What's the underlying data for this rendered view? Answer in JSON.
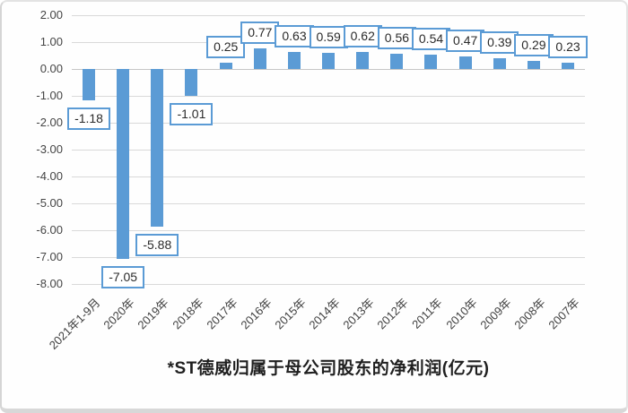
{
  "chart_data": {
    "type": "bar",
    "title": "*ST德威归属于母公司股东的净利润(亿元)",
    "xlabel": "",
    "ylabel": "",
    "categories": [
      "2021年1-9月",
      "2020年",
      "2019年",
      "2018年",
      "2017年",
      "2016年",
      "2015年",
      "2014年",
      "2013年",
      "2012年",
      "2011年",
      "2010年",
      "2009年",
      "2008年",
      "2007年"
    ],
    "values": [
      -1.18,
      -7.05,
      -5.88,
      -1.01,
      0.25,
      0.77,
      0.63,
      0.59,
      0.62,
      0.56,
      0.54,
      0.47,
      0.39,
      0.29,
      0.23
    ],
    "data_labels": [
      "-1.18",
      "-7.05",
      "-5.88",
      "-1.01",
      "0.25",
      "0.77",
      "0.63",
      "0.59",
      "0.62",
      "0.56",
      "0.54",
      "0.47",
      "0.39",
      "0.29",
      "0.23"
    ],
    "y_ticks": [
      "2.00",
      "1.00",
      "0.00",
      "-1.00",
      "-2.00",
      "-3.00",
      "-4.00",
      "-5.00",
      "-6.00",
      "-7.00",
      "-8.00"
    ],
    "ylim": [
      -8.0,
      2.0
    ],
    "grid": true,
    "legend": "none",
    "colors": {
      "bar": "#5b9bd5",
      "label_box_border": "#5b9bd5",
      "label_box_fill": "#ffffff",
      "gridline": "#d9d9d9",
      "axis_text": "#454545",
      "title_text": "#1f1f1f"
    }
  }
}
